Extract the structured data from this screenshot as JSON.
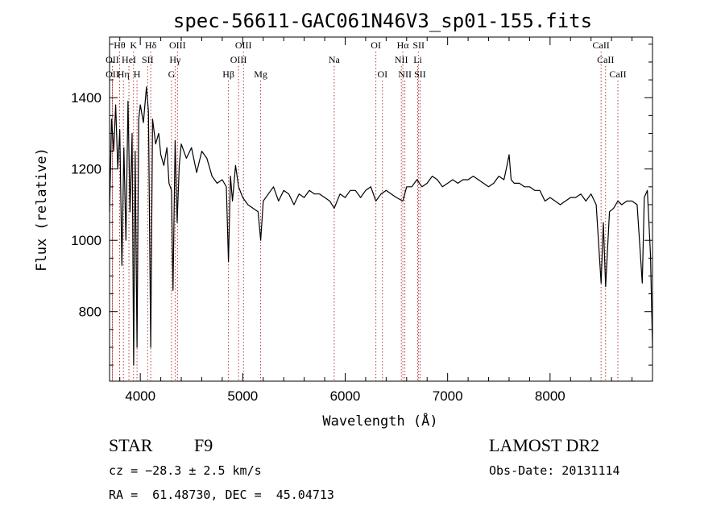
{
  "title": "spec-56611-GAC061N46V3_sp01-155.fits",
  "info": {
    "class": "STAR",
    "subclass": "F9",
    "survey": "LAMOST DR2",
    "cz": "cz = −28.3 ± 2.5 km/s",
    "obs_date": "Obs-Date: 20131114",
    "coords": "RA =  61.48730, DEC =  45.04713"
  },
  "chart_data": {
    "type": "line",
    "xlabel": "Wavelength (Å)",
    "ylabel": "Flux (relative)",
    "xlim": [
      3700,
      9000
    ],
    "ylim": [
      605,
      1570
    ],
    "xticks": [
      4000,
      5000,
      6000,
      7000,
      8000
    ],
    "yticks": [
      800,
      1000,
      1200,
      1400
    ],
    "grid": false,
    "line_color": "#000000",
    "marker_color": "#b22222",
    "line_markers": [
      {
        "name": "Hθ",
        "wavelength": 3798,
        "row": 0
      },
      {
        "name": "OII",
        "wavelength": 3727,
        "row": 1
      },
      {
        "name": "OII",
        "wavelength": 3727,
        "row": 2
      },
      {
        "name": "Hη",
        "wavelength": 3835,
        "row": 2
      },
      {
        "name": "HeI",
        "wavelength": 3889,
        "row": 1
      },
      {
        "name": "K",
        "wavelength": 3934,
        "row": 0
      },
      {
        "name": "H",
        "wavelength": 3968,
        "row": 2
      },
      {
        "name": "SII",
        "wavelength": 4072,
        "row": 1
      },
      {
        "name": "Hδ",
        "wavelength": 4102,
        "row": 0
      },
      {
        "name": "OIII",
        "wavelength": 4363,
        "row": 0
      },
      {
        "name": "Hγ",
        "wavelength": 4340,
        "row": 1
      },
      {
        "name": "G",
        "wavelength": 4305,
        "row": 2
      },
      {
        "name": "Hβ",
        "wavelength": 4861,
        "row": 2
      },
      {
        "name": "OIII",
        "wavelength": 4959,
        "row": 1
      },
      {
        "name": "OIII",
        "wavelength": 5007,
        "row": 0
      },
      {
        "name": "Mg",
        "wavelength": 5175,
        "row": 2
      },
      {
        "name": "Na",
        "wavelength": 5893,
        "row": 1
      },
      {
        "name": "OI",
        "wavelength": 6300,
        "row": 0
      },
      {
        "name": "OI",
        "wavelength": 6364,
        "row": 2
      },
      {
        "name": "NII",
        "wavelength": 6548,
        "row": 1
      },
      {
        "name": "Hα",
        "wavelength": 6563,
        "row": 0
      },
      {
        "name": "NII",
        "wavelength": 6583,
        "row": 2
      },
      {
        "name": "SII",
        "wavelength": 6717,
        "row": 0
      },
      {
        "name": "Li",
        "wavelength": 6708,
        "row": 1
      },
      {
        "name": "SII",
        "wavelength": 6731,
        "row": 2
      },
      {
        "name": "CaII",
        "wavelength": 8498,
        "row": 0
      },
      {
        "name": "CaII",
        "wavelength": 8542,
        "row": 1
      },
      {
        "name": "CaII",
        "wavelength": 8662,
        "row": 2
      }
    ],
    "series": [
      {
        "x": [
          3700,
          3720,
          3740,
          3760,
          3780,
          3800,
          3820,
          3840,
          3860,
          3880,
          3900,
          3920,
          3935,
          3950,
          3968,
          3985,
          4000,
          4030,
          4060,
          4080,
          4102,
          4120,
          4150,
          4180,
          4200,
          4230,
          4260,
          4280,
          4305,
          4320,
          4340,
          4360,
          4380,
          4400,
          4450,
          4500,
          4550,
          4600,
          4650,
          4700,
          4750,
          4800,
          4840,
          4861,
          4880,
          4900,
          4930,
          4960,
          5000,
          5050,
          5100,
          5150,
          5175,
          5200,
          5250,
          5300,
          5350,
          5400,
          5450,
          5500,
          5550,
          5600,
          5650,
          5700,
          5750,
          5800,
          5850,
          5893,
          5950,
          6000,
          6050,
          6100,
          6150,
          6200,
          6250,
          6300,
          6350,
          6400,
          6450,
          6500,
          6563,
          6600,
          6650,
          6700,
          6750,
          6800,
          6850,
          6900,
          6950,
          7000,
          7050,
          7100,
          7150,
          7200,
          7250,
          7300,
          7350,
          7400,
          7450,
          7500,
          7550,
          7580,
          7600,
          7620,
          7650,
          7700,
          7750,
          7800,
          7850,
          7900,
          7950,
          8000,
          8050,
          8100,
          8150,
          8200,
          8250,
          8300,
          8350,
          8400,
          8450,
          8498,
          8520,
          8542,
          8580,
          8620,
          8662,
          8700,
          8750,
          8800,
          8850,
          8900,
          8920,
          8950,
          8980,
          9000
        ],
        "y": [
          1080,
          1340,
          1250,
          1380,
          1200,
          1310,
          930,
          1260,
          1000,
          1390,
          1080,
          1300,
          650,
          1250,
          700,
          1340,
          1380,
          1330,
          1430,
          1360,
          700,
          1340,
          1270,
          1300,
          1240,
          1210,
          1260,
          1160,
          1140,
          860,
          1280,
          1050,
          1210,
          1270,
          1230,
          1260,
          1190,
          1250,
          1230,
          1180,
          1160,
          1170,
          1150,
          940,
          1180,
          1110,
          1210,
          1150,
          1120,
          1100,
          1090,
          1080,
          1000,
          1110,
          1130,
          1150,
          1110,
          1140,
          1130,
          1100,
          1130,
          1120,
          1140,
          1130,
          1130,
          1120,
          1110,
          1090,
          1130,
          1120,
          1140,
          1140,
          1120,
          1140,
          1150,
          1110,
          1130,
          1140,
          1130,
          1120,
          1110,
          1150,
          1150,
          1170,
          1150,
          1160,
          1180,
          1170,
          1150,
          1160,
          1170,
          1160,
          1170,
          1170,
          1180,
          1170,
          1160,
          1150,
          1160,
          1180,
          1170,
          1210,
          1240,
          1170,
          1160,
          1160,
          1150,
          1150,
          1140,
          1140,
          1110,
          1120,
          1110,
          1100,
          1110,
          1120,
          1120,
          1130,
          1110,
          1130,
          1100,
          880,
          1050,
          870,
          1080,
          1090,
          1110,
          1100,
          1110,
          1110,
          1100,
          880,
          1120,
          1140,
          960,
          700
        ]
      }
    ]
  }
}
